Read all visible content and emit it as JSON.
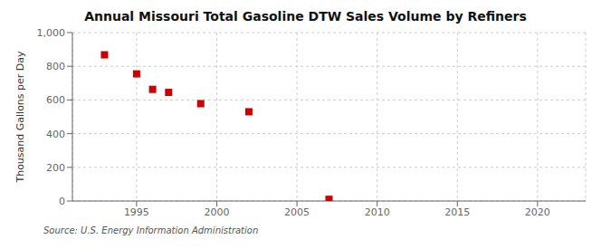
{
  "chart_data": {
    "type": "scatter",
    "title": "Annual Missouri Total Gasoline DTW Sales Volume by Refiners",
    "ylabel": "Thousand Gallons per Day",
    "annotations": [
      "Source: U.S. Energy Information Administration"
    ],
    "x": [
      1993,
      1995,
      1996,
      1997,
      1999,
      2002,
      2007
    ],
    "values": [
      868,
      755,
      663,
      645,
      578,
      530,
      10
    ],
    "color": "#cc0000",
    "marker": "square",
    "xlim": [
      1991,
      2023
    ],
    "xticks": [
      1995,
      2000,
      2005,
      2010,
      2015,
      2020
    ],
    "ylim": [
      0,
      1000
    ],
    "yticks": [
      0,
      200,
      400,
      600,
      800,
      {
        "value": 1000,
        "label": "1,000"
      }
    ],
    "grid": true
  }
}
